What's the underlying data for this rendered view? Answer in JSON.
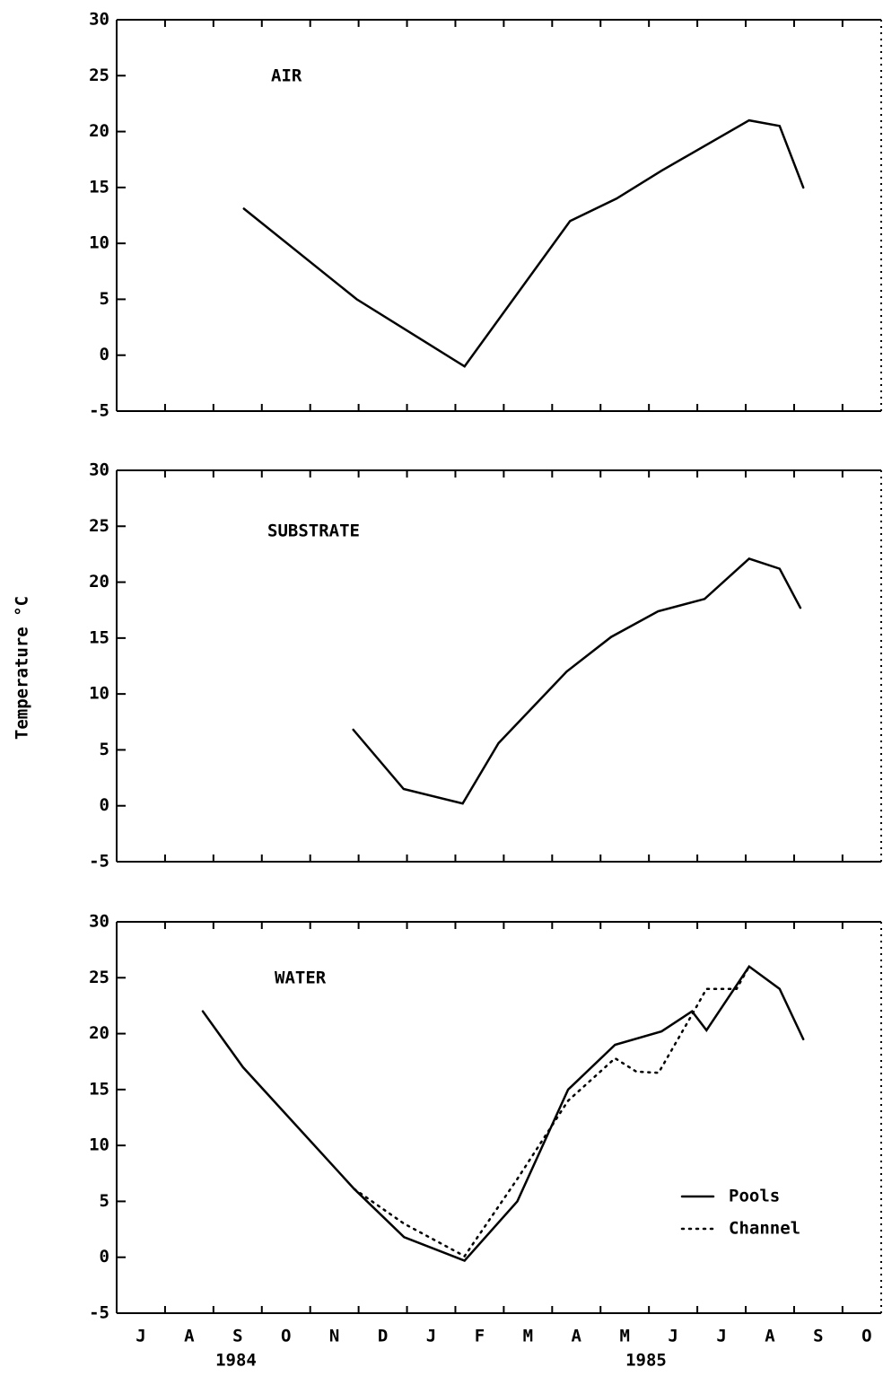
{
  "chart_data": [
    {
      "type": "line",
      "title": "AIR",
      "xlim": [
        0,
        15.8
      ],
      "ylim": [
        -5,
        30
      ],
      "yticks": [
        -5,
        0,
        5,
        10,
        15,
        20,
        25,
        30
      ],
      "series": [
        {
          "name": "Pools",
          "color": "#000000",
          "style": "solid",
          "x": [
            2.63,
            4.96,
            7.19,
            9.37,
            10.33,
            11.26,
            13.07,
            13.7,
            14.19
          ],
          "values": [
            13.1,
            5.0,
            -1.0,
            12.0,
            14.0,
            16.5,
            21.0,
            20.5,
            15.0
          ]
        }
      ]
    },
    {
      "type": "line",
      "title": "SUBSTRATE",
      "xlim": [
        0,
        15.8
      ],
      "ylim": [
        -5,
        30
      ],
      "yticks": [
        -5,
        0,
        5,
        10,
        15,
        20,
        25,
        30
      ],
      "y_label": "Temperature  °C",
      "series": [
        {
          "name": "Pools",
          "color": "#000000",
          "style": "solid",
          "x": [
            4.89,
            5.93,
            7.15,
            7.89,
            9.3,
            10.22,
            11.19,
            12.15,
            13.07,
            13.7,
            14.13
          ],
          "values": [
            6.8,
            1.5,
            0.2,
            5.6,
            12.0,
            15.1,
            17.4,
            18.5,
            22.1,
            21.2,
            17.7
          ]
        }
      ]
    },
    {
      "type": "line",
      "title": "WATER",
      "xlim": [
        0,
        15.8
      ],
      "ylim": [
        -5,
        30
      ],
      "yticks": [
        -5,
        0,
        5,
        10,
        15,
        20,
        25,
        30
      ],
      "categories": [
        "J",
        "A",
        "S",
        "O",
        "N",
        "D",
        "J",
        "F",
        "M",
        "A",
        "M",
        "J",
        "J",
        "A",
        "S",
        "O"
      ],
      "year_labels": [
        "1984",
        "1985"
      ],
      "legend": "lower right",
      "series": [
        {
          "name": "Pools",
          "color": "#000000",
          "style": "solid",
          "x": [
            1.78,
            2.61,
            4.91,
            5.94,
            7.19,
            8.28,
            9.33,
            10.3,
            11.26,
            11.89,
            12.19,
            13.07,
            13.7,
            14.19
          ],
          "values": [
            22.0,
            17.0,
            6.1,
            1.8,
            -0.3,
            5.0,
            15.0,
            19.0,
            20.2,
            22.0,
            20.3,
            26.0,
            24.0,
            19.5
          ]
        },
        {
          "name": "Channel",
          "color": "#000000",
          "style": "dotted",
          "x": [
            4.91,
            5.94,
            7.19,
            8.28,
            9.33,
            10.3,
            10.74,
            11.2,
            11.89,
            12.19,
            12.81,
            13.07
          ],
          "values": [
            6.1,
            3.0,
            0.1,
            7.0,
            14.0,
            17.8,
            16.6,
            16.5,
            21.7,
            24.0,
            24.0,
            26.0
          ]
        }
      ]
    }
  ]
}
